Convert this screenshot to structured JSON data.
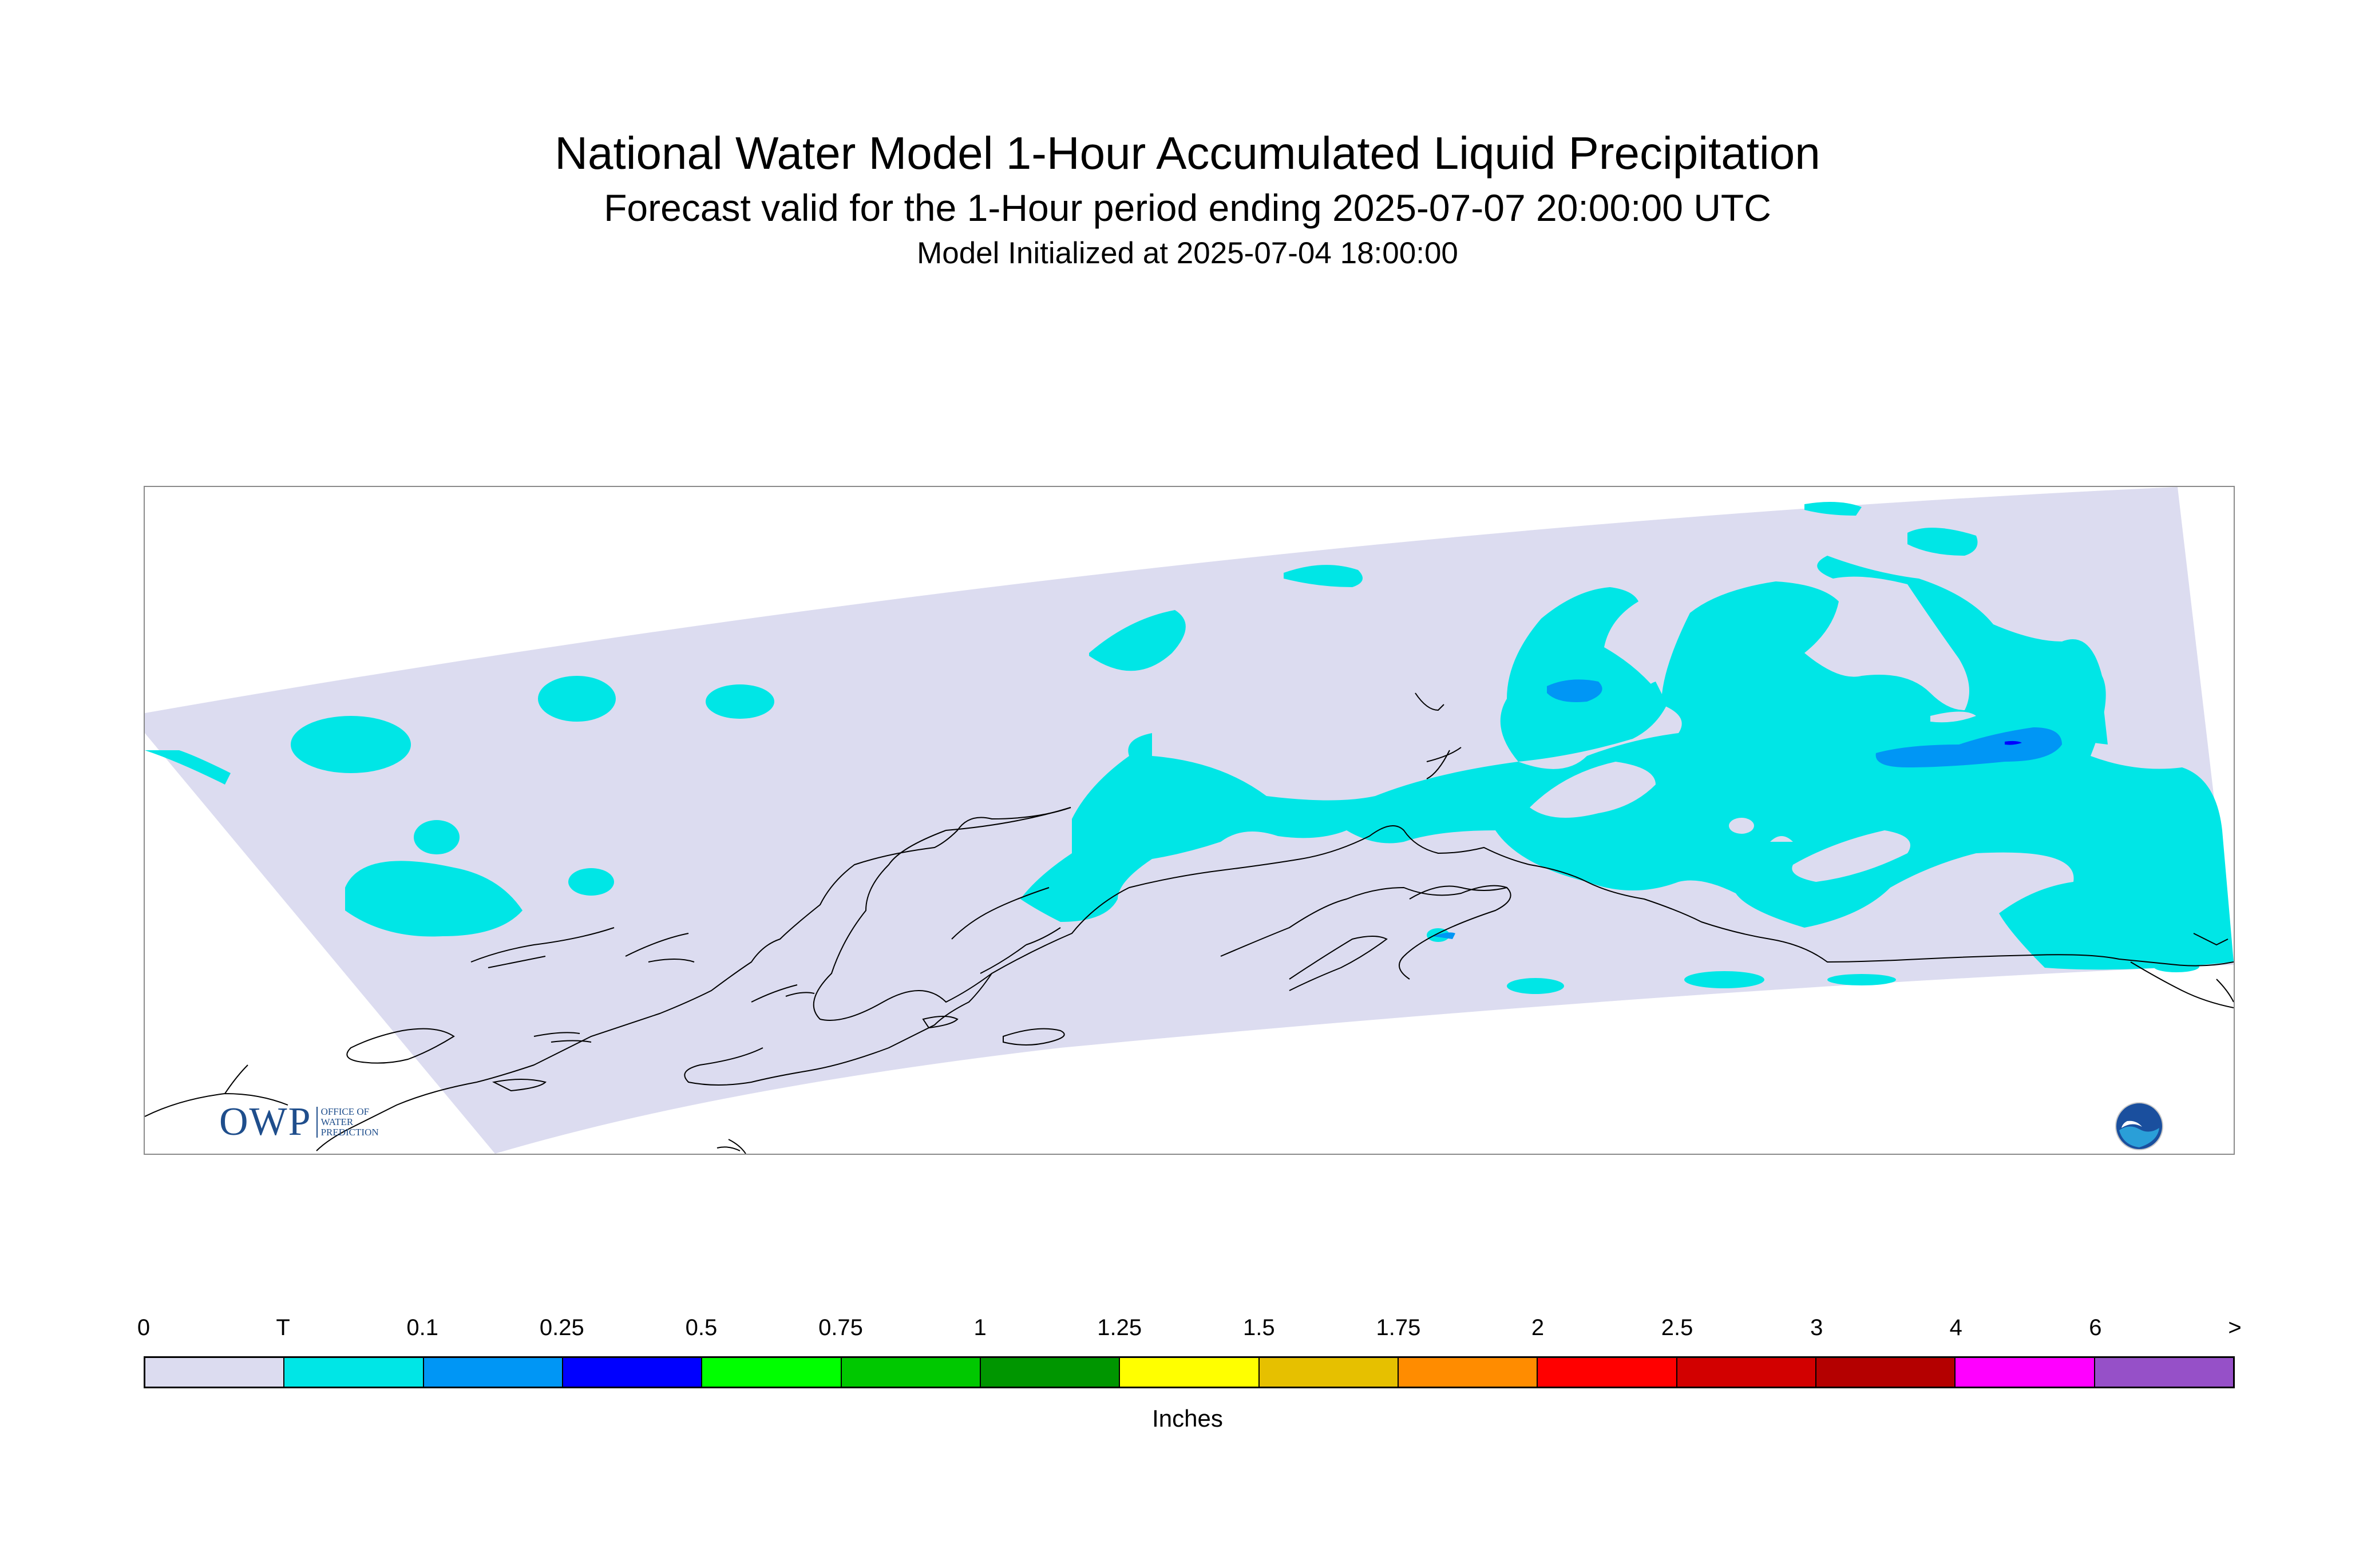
{
  "title": "National Water Model 1-Hour Accumulated Liquid Precipitation",
  "subtitle": "Forecast valid for the 1-Hour period ending 2025-07-07 20:00:00 UTC",
  "init_line": "Model Initialized at 2025-07-04 18:00:00",
  "logos": {
    "owp": {
      "letters": "OWP",
      "sub_lines": [
        "OFFICE OF",
        "WATER",
        "PREDICTION"
      ]
    },
    "noaa": {
      "text": "NOAA"
    }
  },
  "map": {
    "region": "Alaska",
    "background_color": "#ffffff",
    "domain_color": "#dcdcf0",
    "coastline_color": "#000000",
    "precip_present": [
      {
        "category": "T",
        "color": "#00e6e6"
      },
      {
        "category": "0.1",
        "color": "#0096f5"
      },
      {
        "category": "0.25",
        "color": "#0000ff"
      }
    ]
  },
  "legend": {
    "units": "Inches",
    "tick_labels": [
      "0",
      "T",
      "0.1",
      "0.25",
      "0.5",
      "0.75",
      "1",
      "1.25",
      "1.5",
      "1.75",
      "2",
      "2.5",
      "3",
      "4",
      "6",
      ">"
    ],
    "bins": [
      {
        "color": "#dcdcf0"
      },
      {
        "color": "#00e6e6"
      },
      {
        "color": "#0096f5"
      },
      {
        "color": "#0000ff"
      },
      {
        "color": "#00ff00"
      },
      {
        "color": "#00c800"
      },
      {
        "color": "#009600"
      },
      {
        "color": "#ffff00"
      },
      {
        "color": "#e6c000"
      },
      {
        "color": "#ff8c00"
      },
      {
        "color": "#ff0000"
      },
      {
        "color": "#d20000"
      },
      {
        "color": "#b40000"
      },
      {
        "color": "#ff00ff"
      },
      {
        "color": "#9650c8"
      }
    ]
  }
}
